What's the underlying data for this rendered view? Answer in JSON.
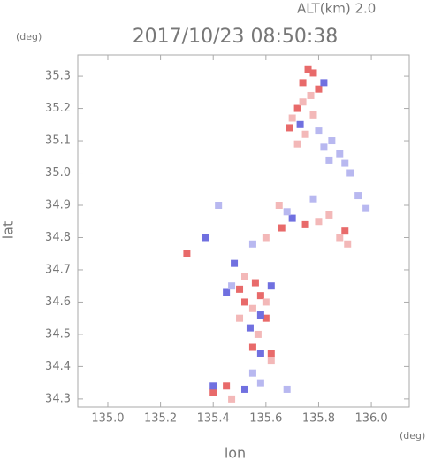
{
  "chart_data": {
    "type": "scatter",
    "header": "ALT(km) 2.0",
    "title": "2017/10/23 08:50:38",
    "y_unit": "(deg)",
    "x_unit": "(deg)",
    "x_label": "lon",
    "y_label": "lat",
    "xlim": [
      134.886,
      136.144
    ],
    "ylim": [
      34.275,
      35.366
    ],
    "xticks": [
      {
        "value": 135,
        "label": "135.0"
      },
      {
        "value": 135.2,
        "label": "135.2"
      },
      {
        "value": 135.4,
        "label": "135.4"
      },
      {
        "value": 135.6,
        "label": "135.6"
      },
      {
        "value": 135.8,
        "label": "135.8"
      },
      {
        "value": 136,
        "label": "136.0"
      }
    ],
    "yticks": [
      34.3,
      34.4,
      34.5,
      34.6,
      34.7,
      34.8,
      34.9,
      {
        "value": 35,
        "label": "35.0"
      },
      35.1,
      35.2,
      35.3
    ],
    "series": [
      {
        "color": "#e86a6a",
        "x": [
          135.76,
          135.78,
          135.74,
          135.8,
          135.72,
          135.69,
          135.56,
          135.52,
          135.6,
          135.55,
          135.62,
          135.4,
          135.45,
          135.66,
          135.75,
          135.3,
          135.5,
          135.58,
          135.9
        ],
        "values": [
          35.32,
          35.31,
          35.28,
          35.26,
          35.2,
          35.14,
          34.66,
          34.6,
          34.55,
          34.46,
          34.44,
          34.32,
          34.34,
          34.83,
          34.84,
          34.75,
          34.64,
          34.62,
          34.82
        ]
      },
      {
        "color": "#f3b8b8",
        "x": [
          135.77,
          135.74,
          135.78,
          135.7,
          135.75,
          135.72,
          135.84,
          135.8,
          135.6,
          135.88,
          135.55,
          135.5,
          135.6,
          135.57,
          135.52,
          135.62,
          135.47,
          135.65,
          135.91
        ],
        "values": [
          35.24,
          35.22,
          35.18,
          35.17,
          35.12,
          35.09,
          34.87,
          34.85,
          34.8,
          34.8,
          34.58,
          34.55,
          34.6,
          34.5,
          34.68,
          34.42,
          34.3,
          34.9,
          34.78
        ]
      },
      {
        "color": "#7070e0",
        "x": [
          135.82,
          135.73,
          135.45,
          135.58,
          135.54,
          135.4,
          135.52,
          135.7,
          135.48,
          135.62,
          135.37,
          135.58
        ],
        "values": [
          35.28,
          35.15,
          34.63,
          34.56,
          34.52,
          34.34,
          34.33,
          34.86,
          34.72,
          34.65,
          34.8,
          34.44
        ]
      },
      {
        "color": "#b8b8f0",
        "x": [
          135.8,
          135.85,
          135.88,
          135.9,
          135.84,
          135.92,
          135.82,
          135.95,
          135.98,
          135.68,
          135.47,
          135.55,
          135.58,
          135.68,
          135.42,
          135.55,
          135.78
        ],
        "values": [
          35.13,
          35.1,
          35.06,
          35.03,
          35.04,
          35.0,
          35.08,
          34.93,
          34.89,
          34.88,
          34.65,
          34.38,
          34.35,
          34.33,
          34.9,
          34.78,
          34.92
        ]
      }
    ]
  }
}
